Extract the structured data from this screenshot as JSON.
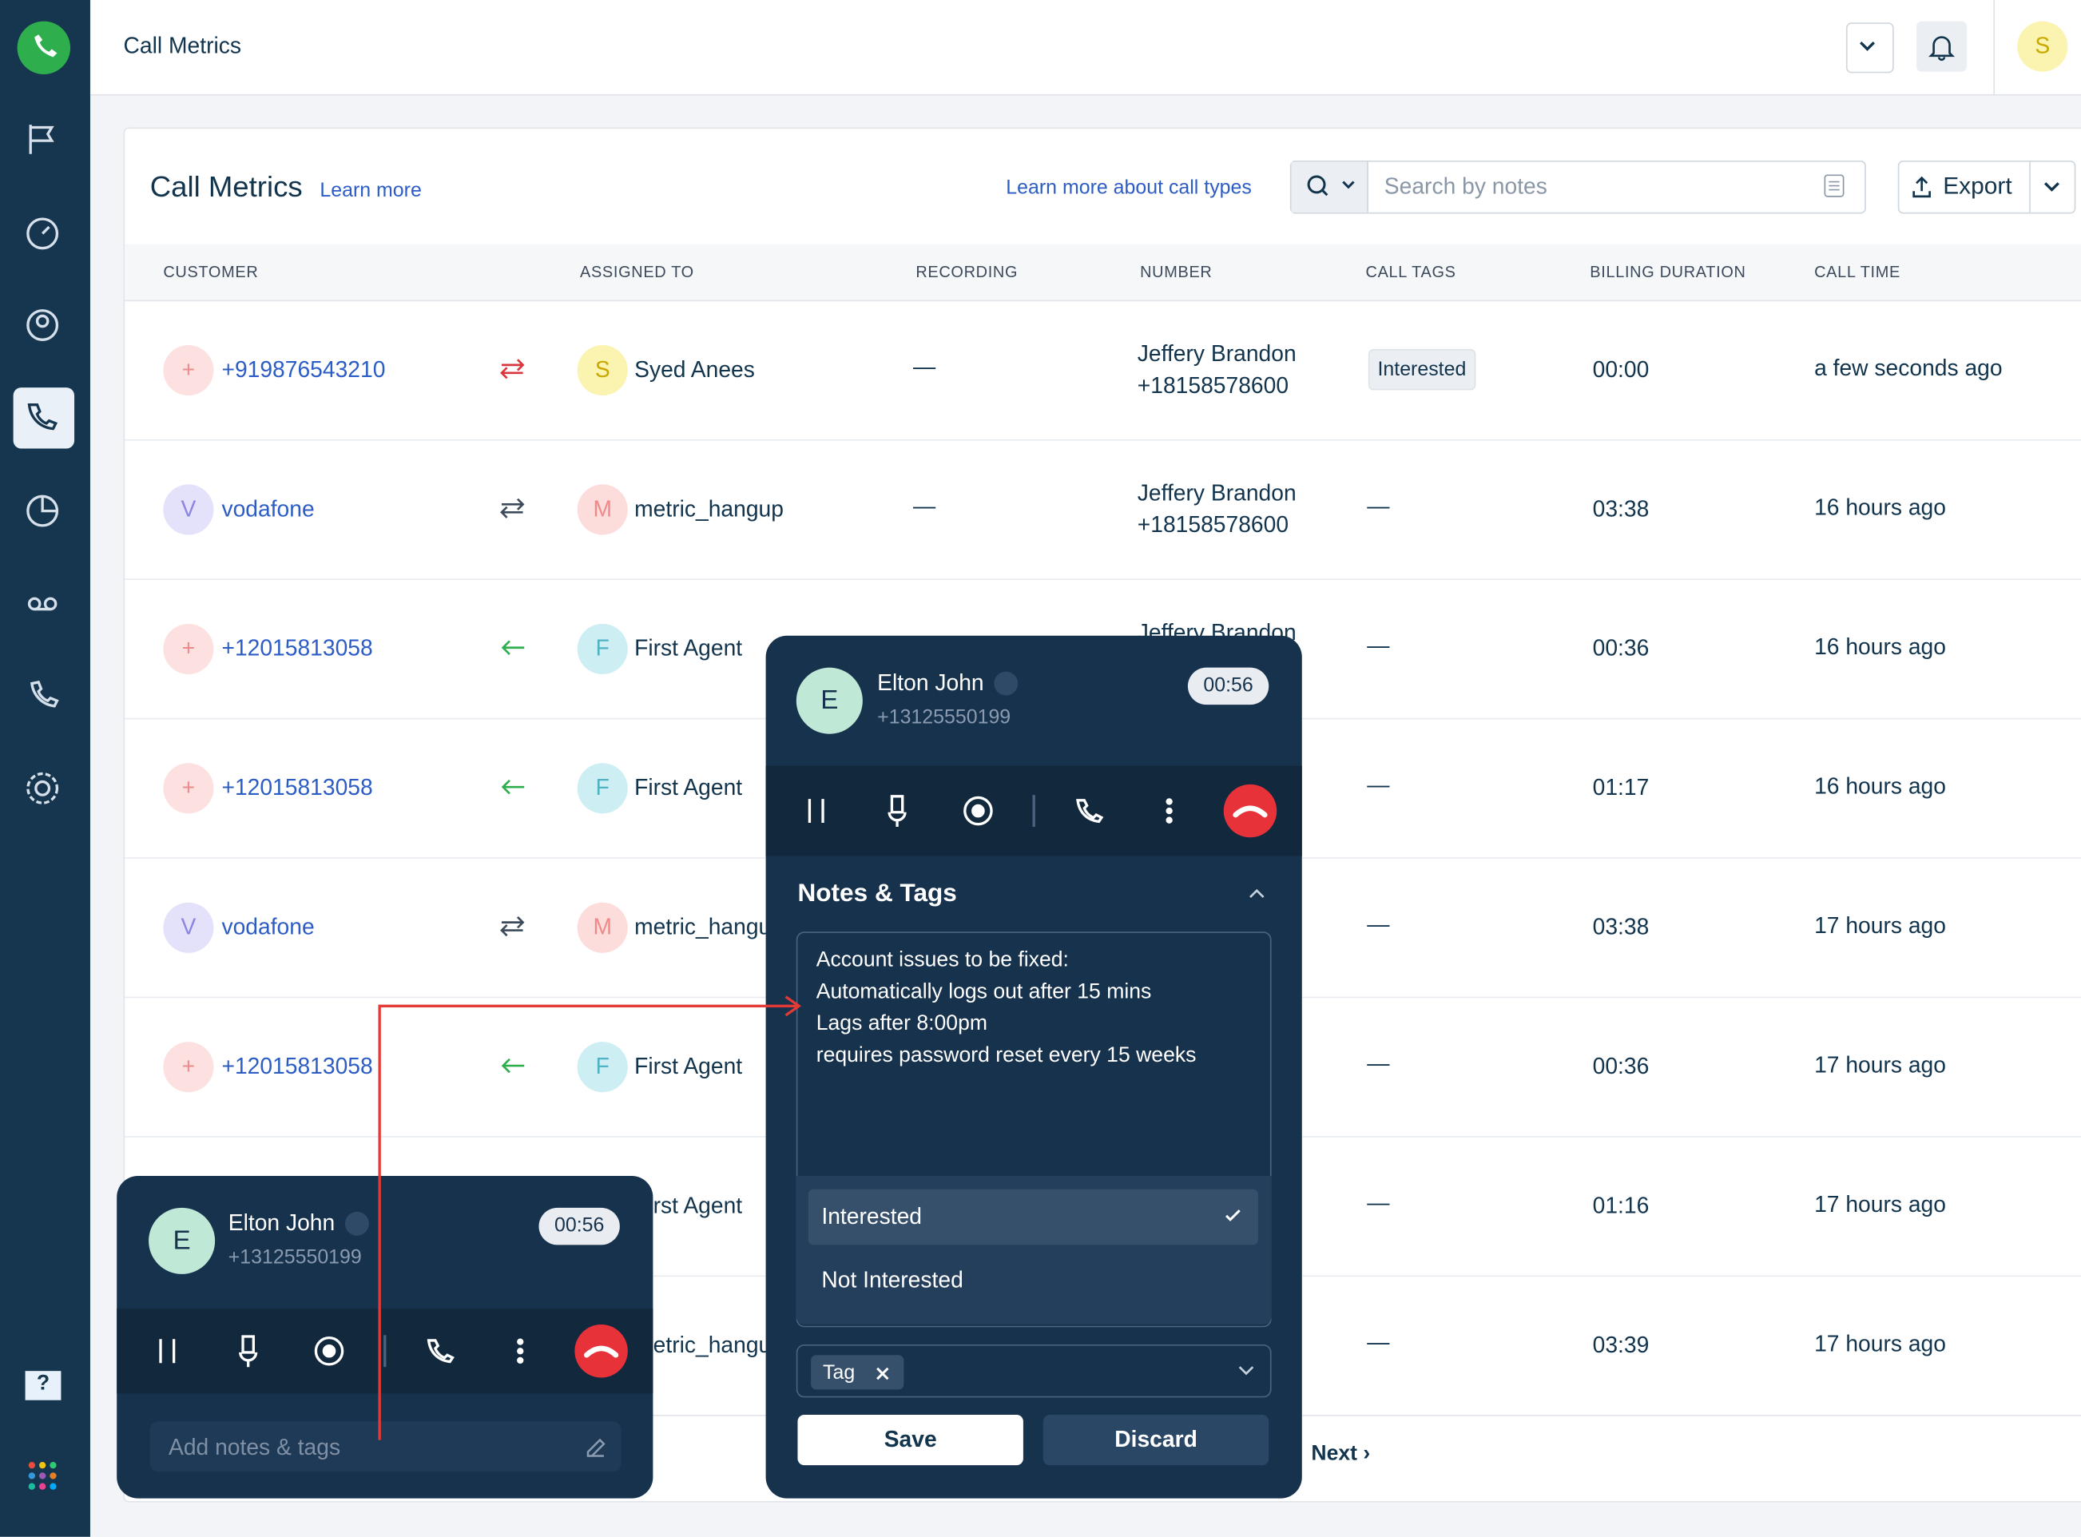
{
  "header": {
    "title": "Call Metrics",
    "avatar": "S"
  },
  "card": {
    "title": "Call Metrics",
    "learn_more": "Learn more",
    "call_types_link": "Learn more about call types",
    "search_placeholder": "Search by notes",
    "export": "Export"
  },
  "table": {
    "columns": [
      "CUSTOMER",
      "ASSIGNED TO",
      "RECORDING",
      "NUMBER",
      "CALL TAGS",
      "BILLING DURATION",
      "CALL TIME"
    ],
    "rows": [
      {
        "customer_avatar": "+",
        "customer": "+919876543210",
        "icon_color": "#d9363e",
        "agent_avatar": "S",
        "agent": "Syed Anees",
        "recording": "—",
        "number_name": "Jeffery Brandon",
        "number": "+18158578600",
        "tag": "Interested",
        "duration": "00:00",
        "time": "a few seconds ago"
      },
      {
        "customer_avatar": "V",
        "customer": "vodafone",
        "icon_color": "#3d4a5c",
        "agent_avatar": "M",
        "agent": "metric_hangup",
        "recording": "—",
        "number_name": "Jeffery Brandon",
        "number": "+18158578600",
        "tag": "—",
        "duration": "03:38",
        "time": "16 hours ago"
      },
      {
        "customer_avatar": "+",
        "customer": "+12015813058",
        "icon_color": "#2fae4e",
        "agent_avatar": "F",
        "agent": "First Agent",
        "recording": null,
        "number_name": "Jeffery Brandon",
        "number": null,
        "tag": "—",
        "duration": "00:36",
        "time": "16 hours ago"
      },
      {
        "customer_avatar": "+",
        "customer": "+12015813058",
        "icon_color": "#2fae4e",
        "agent_avatar": "F",
        "agent": "First Agent",
        "recording": null,
        "number_name": null,
        "number": null,
        "tag": "—",
        "duration": "01:17",
        "time": "16 hours ago"
      },
      {
        "customer_avatar": "V",
        "customer": "vodafone",
        "icon_color": "#3d4a5c",
        "agent_avatar": "M",
        "agent": "metric_hangup",
        "recording": null,
        "number_name": null,
        "number": null,
        "tag": "—",
        "duration": "03:38",
        "time": "17 hours ago"
      },
      {
        "customer_avatar": "+",
        "customer": "+12015813058",
        "icon_color": "#2fae4e",
        "agent_avatar": "F",
        "agent": "First Agent",
        "recording": null,
        "number_name": null,
        "number": null,
        "tag": "—",
        "duration": "00:36",
        "time": "17 hours ago"
      },
      {
        "customer_avatar": null,
        "customer": null,
        "icon_color": null,
        "agent_avatar": null,
        "agent": "First Agent",
        "recording": null,
        "number_name": null,
        "number": null,
        "tag": "—",
        "duration": "01:16",
        "time": "17 hours ago"
      },
      {
        "customer_avatar": null,
        "customer": null,
        "icon_color": null,
        "agent_avatar": null,
        "agent": "metric_hangup",
        "recording": null,
        "number_name": null,
        "number": null,
        "tag": "—",
        "duration": "03:39",
        "time": "17 hours ago"
      }
    ],
    "next": "Next ›"
  },
  "call_panel": {
    "avatar": "E",
    "name": "Elton John",
    "phone": "+13125550199",
    "timer": "00:56",
    "section": "Notes & Tags",
    "notes": [
      "Account issues to be fixed:",
      "Automatically logs out after 15 mins",
      "Lags after 8:00pm",
      "requires password reset every 15 weeks"
    ],
    "options": [
      "Interested",
      "Not Interested"
    ],
    "chip": "Tag",
    "save": "Save",
    "discard": "Discard"
  },
  "mini_panel": {
    "avatar": "E",
    "name": "Elton John",
    "phone": "+13125550199",
    "timer": "00:56",
    "notes_placeholder": "Add notes & tags"
  },
  "sidebar": {
    "help": "?"
  }
}
